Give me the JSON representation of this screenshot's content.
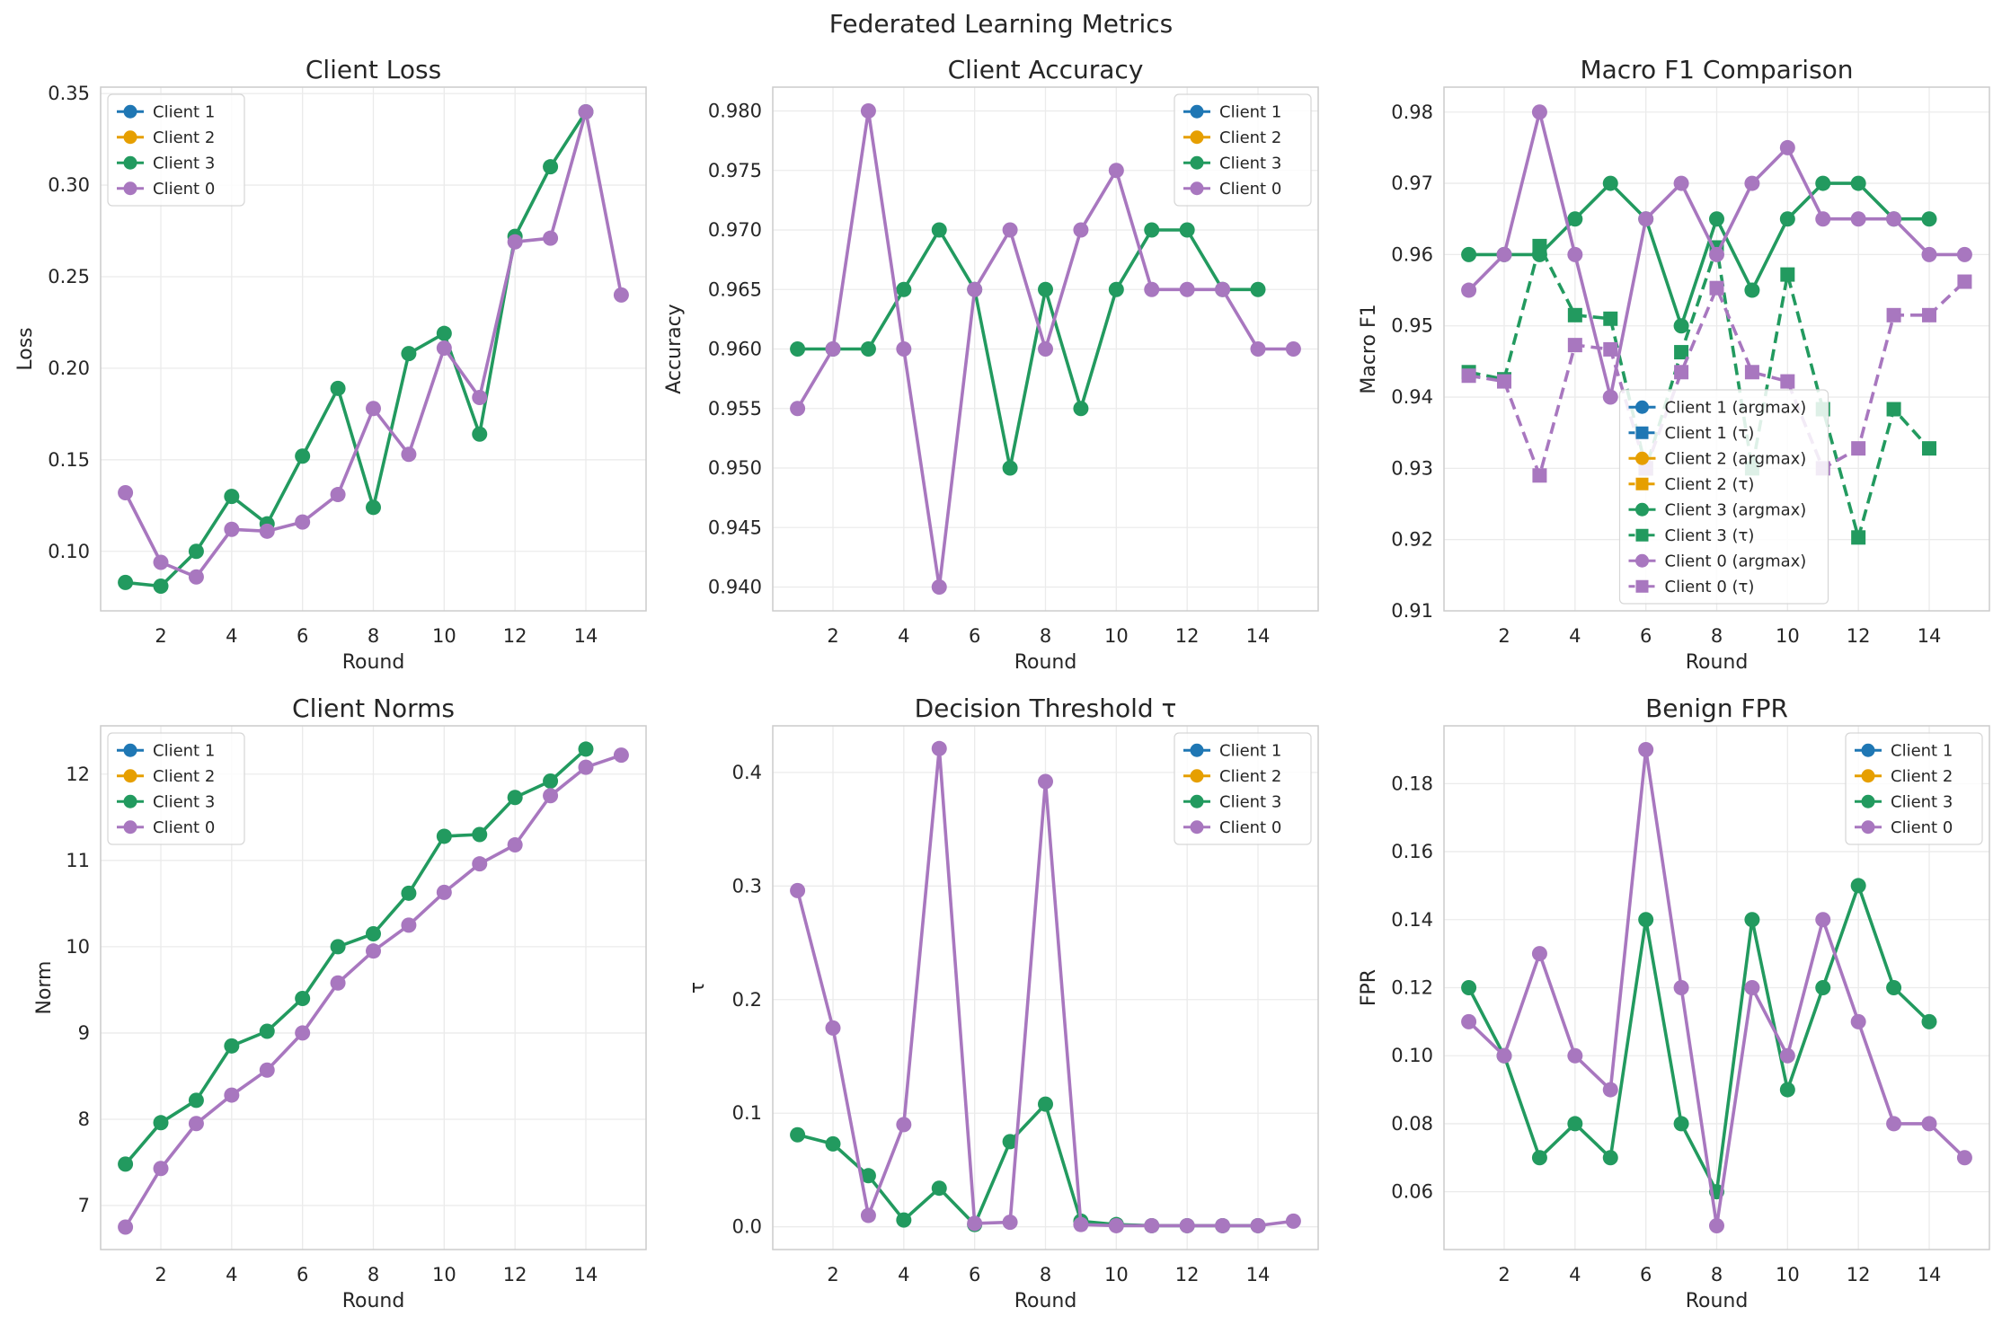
{
  "suptitle": "Federated Learning Metrics",
  "colors": {
    "client1": "#1f77b4",
    "client2": "#e69f00",
    "client3": "#229a5f",
    "client0": "#a877bf",
    "grid": "#ebebeb",
    "spine": "#cccccc",
    "text": "#262626"
  },
  "chart_data": [
    {
      "type": "line",
      "title": "Client Loss",
      "xlabel": "Round",
      "ylabel": "Loss",
      "xlim": [
        0.3,
        15.7
      ],
      "ylim": [
        0.0675,
        0.3535
      ],
      "xticks": [
        2,
        4,
        6,
        8,
        10,
        12,
        14
      ],
      "yticks": [
        0.1,
        0.15,
        0.2,
        0.25,
        0.3,
        0.35
      ],
      "ytick_labels": [
        "0.10",
        "0.15",
        "0.20",
        "0.25",
        "0.30",
        "0.35"
      ],
      "legend": {
        "position": "upper-left",
        "entries": [
          "Client 1",
          "Client 2",
          "Client 3",
          "Client 0"
        ]
      },
      "series": [
        {
          "name": "Client 3",
          "x": [
            1,
            2,
            3,
            4,
            5,
            6,
            7,
            8,
            9,
            10,
            11,
            12,
            13,
            14
          ],
          "values": [
            0.083,
            0.081,
            0.1,
            0.13,
            0.115,
            0.152,
            0.189,
            0.124,
            0.208,
            0.219,
            0.164,
            0.272,
            0.31,
            0.34
          ]
        },
        {
          "name": "Client 0",
          "x": [
            1,
            2,
            3,
            4,
            5,
            6,
            7,
            8,
            9,
            10,
            11,
            12,
            13,
            14,
            15
          ],
          "values": [
            0.132,
            0.094,
            0.086,
            0.112,
            0.111,
            0.116,
            0.131,
            0.178,
            0.153,
            0.211,
            0.184,
            0.269,
            0.271,
            0.34,
            0.24
          ]
        }
      ]
    },
    {
      "type": "line",
      "title": "Client Accuracy",
      "xlabel": "Round",
      "ylabel": "Accuracy",
      "xlim": [
        0.3,
        15.7
      ],
      "ylim": [
        0.938,
        0.982
      ],
      "xticks": [
        2,
        4,
        6,
        8,
        10,
        12,
        14
      ],
      "yticks": [
        0.94,
        0.945,
        0.95,
        0.955,
        0.96,
        0.965,
        0.97,
        0.975,
        0.98
      ],
      "ytick_labels": [
        "0.940",
        "0.945",
        "0.950",
        "0.955",
        "0.960",
        "0.965",
        "0.970",
        "0.975",
        "0.980"
      ],
      "legend": {
        "position": "upper-right",
        "entries": [
          "Client 1",
          "Client 2",
          "Client 3",
          "Client 0"
        ]
      },
      "series": [
        {
          "name": "Client 3",
          "x": [
            1,
            2,
            3,
            4,
            5,
            6,
            7,
            8,
            9,
            10,
            11,
            12,
            13,
            14
          ],
          "values": [
            0.96,
            0.96,
            0.96,
            0.965,
            0.97,
            0.965,
            0.95,
            0.965,
            0.955,
            0.965,
            0.97,
            0.97,
            0.965,
            0.965
          ]
        },
        {
          "name": "Client 0",
          "x": [
            1,
            2,
            3,
            4,
            5,
            6,
            7,
            8,
            9,
            10,
            11,
            12,
            13,
            14,
            15
          ],
          "values": [
            0.955,
            0.96,
            0.98,
            0.96,
            0.94,
            0.965,
            0.97,
            0.96,
            0.97,
            0.975,
            0.965,
            0.965,
            0.965,
            0.96,
            0.96
          ]
        }
      ]
    },
    {
      "type": "line",
      "title": "Macro F1 Comparison",
      "xlabel": "Round",
      "ylabel": "Macro F1",
      "xlim": [
        0.3,
        15.7
      ],
      "ylim": [
        0.91,
        0.9835
      ],
      "xticks": [
        2,
        4,
        6,
        8,
        10,
        12,
        14
      ],
      "yticks": [
        0.91,
        0.92,
        0.93,
        0.94,
        0.95,
        0.96,
        0.97,
        0.98
      ],
      "ytick_labels": [
        "0.91",
        "0.92",
        "0.93",
        "0.94",
        "0.95",
        "0.96",
        "0.97",
        "0.98"
      ],
      "legend": {
        "position": "lower-center",
        "entries": [
          "Client 1 (argmax)",
          "Client 1 (τ)",
          "Client 2 (argmax)",
          "Client 2 (τ)",
          "Client 3 (argmax)",
          "Client 3 (τ)",
          "Client 0 (argmax)",
          "Client 0 (τ)"
        ]
      },
      "series": [
        {
          "name": "Client 3 (τ)",
          "x": [
            1,
            2,
            3,
            4,
            5,
            6,
            7,
            8,
            9,
            10,
            11,
            12,
            13,
            14
          ],
          "values": [
            0.9435,
            0.9425,
            0.9612,
            0.9515,
            0.951,
            0.93,
            0.9463,
            0.961,
            0.93,
            0.9572,
            0.9383,
            0.9203,
            0.9383,
            0.9328
          ]
        },
        {
          "name": "Client 0 (τ)",
          "x": [
            1,
            2,
            3,
            4,
            5,
            6,
            7,
            8,
            9,
            10,
            11,
            12,
            13,
            14,
            15
          ],
          "values": [
            0.943,
            0.9422,
            0.929,
            0.9473,
            0.9467,
            0.93,
            0.9435,
            0.9553,
            0.9435,
            0.9422,
            0.93,
            0.9328,
            0.9515,
            0.9515,
            0.9562
          ]
        },
        {
          "name": "Client 3 (argmax)",
          "x": [
            1,
            2,
            3,
            4,
            5,
            6,
            7,
            8,
            9,
            10,
            11,
            12,
            13,
            14
          ],
          "values": [
            0.96,
            0.96,
            0.96,
            0.965,
            0.97,
            0.965,
            0.95,
            0.965,
            0.955,
            0.965,
            0.97,
            0.97,
            0.965,
            0.965
          ]
        },
        {
          "name": "Client 0 (argmax)",
          "x": [
            1,
            2,
            3,
            4,
            5,
            6,
            7,
            8,
            9,
            10,
            11,
            12,
            13,
            14,
            15
          ],
          "values": [
            0.955,
            0.96,
            0.98,
            0.96,
            0.94,
            0.965,
            0.97,
            0.96,
            0.97,
            0.975,
            0.965,
            0.965,
            0.965,
            0.96,
            0.96
          ]
        }
      ]
    },
    {
      "type": "line",
      "title": "Client Norms",
      "xlabel": "Round",
      "ylabel": "Norm",
      "xlim": [
        0.3,
        15.7
      ],
      "ylim": [
        6.49,
        12.56
      ],
      "xticks": [
        2,
        4,
        6,
        8,
        10,
        12,
        14
      ],
      "yticks": [
        7,
        8,
        9,
        10,
        11,
        12
      ],
      "ytick_labels": [
        "7",
        "8",
        "9",
        "10",
        "11",
        "12"
      ],
      "legend": {
        "position": "upper-left",
        "entries": [
          "Client 1",
          "Client 2",
          "Client 3",
          "Client 0"
        ]
      },
      "series": [
        {
          "name": "Client 3",
          "x": [
            1,
            2,
            3,
            4,
            5,
            6,
            7,
            8,
            9,
            10,
            11,
            12,
            13,
            14
          ],
          "values": [
            7.48,
            7.96,
            8.22,
            8.85,
            9.02,
            9.4,
            10.0,
            10.15,
            10.62,
            11.28,
            11.3,
            11.73,
            11.92,
            12.29
          ]
        },
        {
          "name": "Client 0",
          "x": [
            1,
            2,
            3,
            4,
            5,
            6,
            7,
            8,
            9,
            10,
            11,
            12,
            13,
            14,
            15
          ],
          "values": [
            6.75,
            7.43,
            7.95,
            8.28,
            8.57,
            9.0,
            9.58,
            9.95,
            10.25,
            10.63,
            10.96,
            11.18,
            11.75,
            12.08,
            12.22
          ]
        }
      ]
    },
    {
      "type": "line",
      "title": "Decision Threshold τ",
      "xlabel": "Round",
      "ylabel": "τ",
      "xlim": [
        0.3,
        15.7
      ],
      "ylim": [
        -0.02,
        0.441
      ],
      "xticks": [
        2,
        4,
        6,
        8,
        10,
        12,
        14
      ],
      "yticks": [
        0.0,
        0.1,
        0.2,
        0.3,
        0.4
      ],
      "ytick_labels": [
        "0.0",
        "0.1",
        "0.2",
        "0.3",
        "0.4"
      ],
      "legend": {
        "position": "upper-right",
        "entries": [
          "Client 1",
          "Client 2",
          "Client 3",
          "Client 0"
        ]
      },
      "series": [
        {
          "name": "Client 3",
          "x": [
            1,
            2,
            3,
            4,
            5,
            6,
            7,
            8,
            9,
            10,
            11,
            12,
            13,
            14
          ],
          "values": [
            0.081,
            0.073,
            0.045,
            0.006,
            0.034,
            0.002,
            0.075,
            0.108,
            0.005,
            0.002,
            0.001,
            0.001,
            0.001,
            0.001
          ]
        },
        {
          "name": "Client 0",
          "x": [
            1,
            2,
            3,
            4,
            5,
            6,
            7,
            8,
            9,
            10,
            11,
            12,
            13,
            14,
            15
          ],
          "values": [
            0.296,
            0.175,
            0.01,
            0.09,
            0.421,
            0.003,
            0.004,
            0.392,
            0.002,
            0.001,
            0.001,
            0.001,
            0.001,
            0.001,
            0.005
          ]
        }
      ]
    },
    {
      "type": "line",
      "title": "Benign FPR",
      "xlabel": "Round",
      "ylabel": "FPR",
      "xlim": [
        0.3,
        15.7
      ],
      "ylim": [
        0.043,
        0.197
      ],
      "xticks": [
        2,
        4,
        6,
        8,
        10,
        12,
        14
      ],
      "yticks": [
        0.06,
        0.08,
        0.1,
        0.12,
        0.14,
        0.16,
        0.18
      ],
      "ytick_labels": [
        "0.06",
        "0.08",
        "0.10",
        "0.12",
        "0.14",
        "0.16",
        "0.18"
      ],
      "legend": {
        "position": "upper-right",
        "entries": [
          "Client 1",
          "Client 2",
          "Client 3",
          "Client 0"
        ]
      },
      "series": [
        {
          "name": "Client 3",
          "x": [
            1,
            2,
            3,
            4,
            5,
            6,
            7,
            8,
            9,
            10,
            11,
            12,
            13,
            14
          ],
          "values": [
            0.12,
            0.1,
            0.07,
            0.08,
            0.07,
            0.14,
            0.08,
            0.06,
            0.14,
            0.09,
            0.12,
            0.15,
            0.12,
            0.11
          ]
        },
        {
          "name": "Client 0",
          "x": [
            1,
            2,
            3,
            4,
            5,
            6,
            7,
            8,
            9,
            10,
            11,
            12,
            13,
            14,
            15
          ],
          "values": [
            0.11,
            0.1,
            0.13,
            0.1,
            0.09,
            0.19,
            0.12,
            0.05,
            0.12,
            0.1,
            0.14,
            0.11,
            0.08,
            0.08,
            0.07
          ]
        }
      ]
    }
  ]
}
